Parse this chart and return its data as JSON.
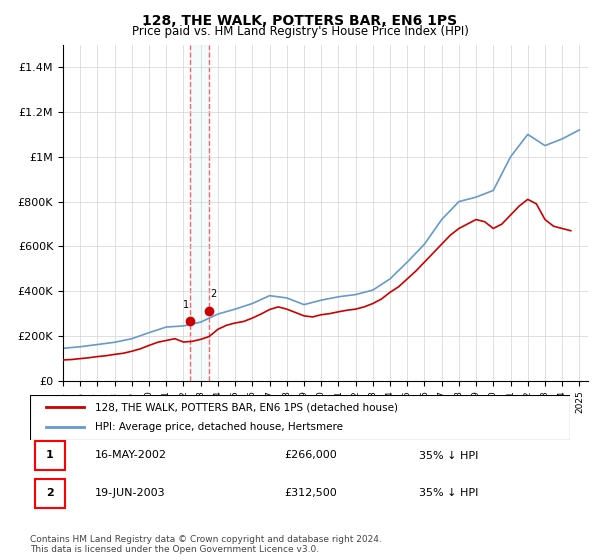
{
  "title": "128, THE WALK, POTTERS BAR, EN6 1PS",
  "subtitle": "Price paid vs. HM Land Registry's House Price Index (HPI)",
  "legend_entry1": "128, THE WALK, POTTERS BAR, EN6 1PS (detached house)",
  "legend_entry2": "HPI: Average price, detached house, Hertsmere",
  "transaction1_label": "1",
  "transaction1_date": "16-MAY-2002",
  "transaction1_price": "£266,000",
  "transaction1_hpi": "35% ↓ HPI",
  "transaction2_label": "2",
  "transaction2_date": "19-JUN-2003",
  "transaction2_price": "£312,500",
  "transaction2_hpi": "35% ↓ HPI",
  "footnote": "Contains HM Land Registry data © Crown copyright and database right 2024.\nThis data is licensed under the Open Government Licence v3.0.",
  "red_color": "#cc0000",
  "blue_color": "#6699cc",
  "marker_color": "#cc0000",
  "vline_color": "#ff6666",
  "ylim": [
    0,
    1500000
  ],
  "yticks": [
    0,
    200000,
    400000,
    600000,
    800000,
    1000000,
    1200000,
    1400000
  ],
  "ytick_labels": [
    "£0",
    "£200K",
    "£400K",
    "£600K",
    "£800K",
    "£1M",
    "£1.2M",
    "£1.4M"
  ],
  "hpi_years": [
    1995,
    1996,
    1997,
    1998,
    1999,
    2000,
    2001,
    2002,
    2003,
    2004,
    2005,
    2006,
    2007,
    2008,
    2009,
    2010,
    2011,
    2012,
    2013,
    2014,
    2015,
    2016,
    2017,
    2018,
    2019,
    2020,
    2021,
    2022,
    2023,
    2024,
    2025
  ],
  "hpi_values": [
    145000,
    152000,
    162000,
    172000,
    188000,
    215000,
    240000,
    245000,
    262000,
    298000,
    320000,
    345000,
    380000,
    370000,
    340000,
    360000,
    375000,
    385000,
    405000,
    455000,
    530000,
    610000,
    720000,
    800000,
    820000,
    850000,
    1000000,
    1100000,
    1050000,
    1080000,
    1120000
  ],
  "price_years": [
    1995.0,
    1995.5,
    1996.0,
    1996.5,
    1997.0,
    1997.5,
    1998.0,
    1998.5,
    1999.0,
    1999.5,
    2000.0,
    2000.5,
    2001.0,
    2001.5,
    2002.0,
    2002.5,
    2003.0,
    2003.5,
    2004.0,
    2004.5,
    2005.0,
    2005.5,
    2006.0,
    2006.5,
    2007.0,
    2007.5,
    2008.0,
    2008.5,
    2009.0,
    2009.5,
    2010.0,
    2010.5,
    2011.0,
    2011.5,
    2012.0,
    2012.5,
    2013.0,
    2013.5,
    2014.0,
    2014.5,
    2015.0,
    2015.5,
    2016.0,
    2016.5,
    2017.0,
    2017.5,
    2018.0,
    2018.5,
    2019.0,
    2019.5,
    2020.0,
    2020.5,
    2021.0,
    2021.5,
    2022.0,
    2022.5,
    2023.0,
    2023.5,
    2024.0,
    2024.5
  ],
  "price_values": [
    93000,
    95000,
    99000,
    103000,
    108000,
    112000,
    118000,
    123000,
    132000,
    143000,
    158000,
    172000,
    180000,
    188000,
    173000,
    176000,
    185000,
    198000,
    230000,
    248000,
    258000,
    265000,
    280000,
    298000,
    318000,
    330000,
    320000,
    305000,
    290000,
    285000,
    295000,
    300000,
    308000,
    315000,
    320000,
    330000,
    345000,
    365000,
    395000,
    420000,
    455000,
    490000,
    530000,
    570000,
    610000,
    650000,
    680000,
    700000,
    720000,
    710000,
    680000,
    700000,
    740000,
    780000,
    810000,
    790000,
    720000,
    690000,
    680000,
    670000
  ],
  "transaction1_x": 2002.37,
  "transaction1_y": 266000,
  "transaction2_x": 2003.46,
  "transaction2_y": 312500,
  "xmin": 1995,
  "xmax": 2025.5
}
